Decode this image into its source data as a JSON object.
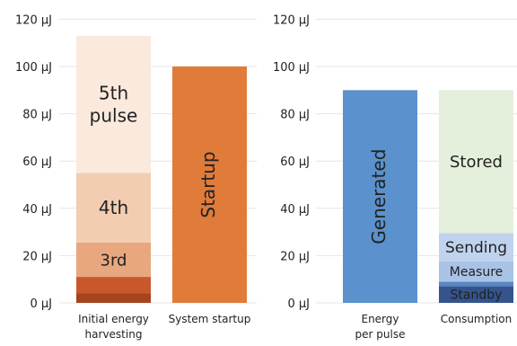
{
  "chart_data": [
    {
      "type": "bar",
      "stacked": true,
      "y_unit": "µJ",
      "ylim": [
        0,
        120
      ],
      "y_ticks": [
        "0 µJ",
        "20 µJ",
        "40 µJ",
        "60 µJ",
        "80 µJ",
        "100 µJ",
        "120 µJ"
      ],
      "grid": true,
      "categories": [
        {
          "label_lines": [
            "Initial energy",
            "harvesting"
          ]
        },
        {
          "label_lines": [
            "System startup"
          ]
        }
      ],
      "bars": [
        {
          "category": 0,
          "segments": [
            {
              "label": "",
              "value": 4,
              "color": "#a5441f"
            },
            {
              "label": "",
              "value": 7,
              "color": "#c8582c"
            },
            {
              "label": "3rd",
              "value": 14.5,
              "color": "#e8a77e"
            },
            {
              "label": "4th",
              "value": 29.5,
              "color": "#f2cdb2"
            },
            {
              "label": "5th pulse",
              "label_lines": [
                "5th",
                "pulse"
              ],
              "value": 58,
              "color": "#fbe9dd"
            }
          ]
        },
        {
          "category": 1,
          "segments": [
            {
              "label": "Startup",
              "value": 100,
              "color": "#e07b39",
              "vertical": true
            }
          ]
        }
      ]
    },
    {
      "type": "bar",
      "stacked": true,
      "y_unit": "µJ",
      "ylim": [
        0,
        120
      ],
      "y_ticks": [
        "0 µJ",
        "20 µJ",
        "40 µJ",
        "60 µJ",
        "80 µJ",
        "100 µJ",
        "120 µJ"
      ],
      "grid": true,
      "categories": [
        {
          "label_lines": [
            "Energy",
            "per pulse"
          ]
        },
        {
          "label_lines": [
            "Consumption"
          ]
        }
      ],
      "bars": [
        {
          "category": 0,
          "segments": [
            {
              "label": "Generated",
              "value": 90,
              "color": "#5b91cc",
              "vertical": true
            }
          ]
        },
        {
          "category": 1,
          "segments": [
            {
              "label": "Standby",
              "value": 7,
              "color": "#34548b"
            },
            {
              "label": "",
              "value": 2,
              "color": "#5b86c4"
            },
            {
              "label": "Measure",
              "value": 8.5,
              "color": "#a9c3e6"
            },
            {
              "label": "Sending",
              "value": 12,
              "color": "#bfd3ee"
            },
            {
              "label": "Stored",
              "value": 60.5,
              "color": "#e4efdc"
            }
          ]
        }
      ]
    }
  ]
}
